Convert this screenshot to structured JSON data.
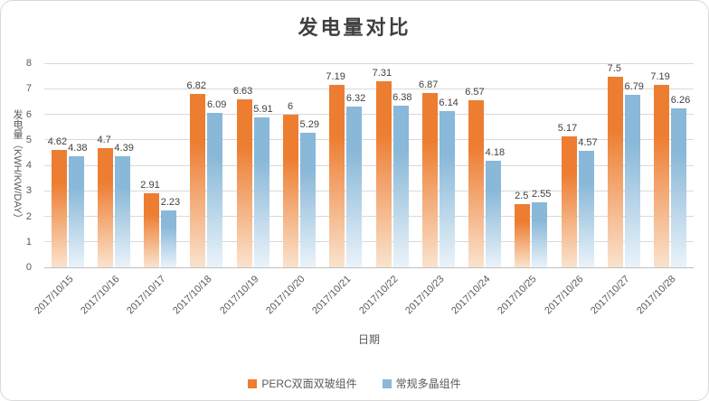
{
  "chart_data": {
    "type": "bar",
    "title": "发电量对比",
    "xlabel": "日期",
    "ylabel": "发电量（KWH/KW/DAY）",
    "ylim": [
      0,
      8
    ],
    "ytick_step": 1,
    "grid": true,
    "legend_position": "bottom",
    "categories": [
      "2017/10/15",
      "2017/10/16",
      "2017/10/17",
      "2017/10/18",
      "2017/10/19",
      "2017/10/20",
      "2017/10/21",
      "2017/10/22",
      "2017/10/23",
      "2017/10/24",
      "2017/10/25",
      "2017/10/26",
      "2017/10/27",
      "2017/10/28"
    ],
    "series": [
      {
        "name": "PERC双面双玻组件",
        "color": "#ED7D31",
        "color_light": "#FAE3CE",
        "values": [
          4.62,
          4.7,
          2.91,
          6.82,
          6.63,
          6,
          7.19,
          7.31,
          6.87,
          6.57,
          2.5,
          5.17,
          7.5,
          7.19
        ]
      },
      {
        "name": "常规多晶组件",
        "color": "#89B8D8",
        "color_light": "#EAF3FA",
        "values": [
          4.38,
          4.39,
          2.23,
          6.09,
          5.91,
          5.29,
          6.32,
          6.38,
          6.14,
          4.18,
          2.55,
          4.57,
          6.79,
          6.26
        ]
      }
    ],
    "colors": {
      "title_text": "#404040",
      "axis_text": "#595959",
      "value_label_text": "#404040",
      "gridline": "#D9D9D9",
      "axis_line": "#BFBFBF",
      "background": "#FFFFFF"
    }
  }
}
